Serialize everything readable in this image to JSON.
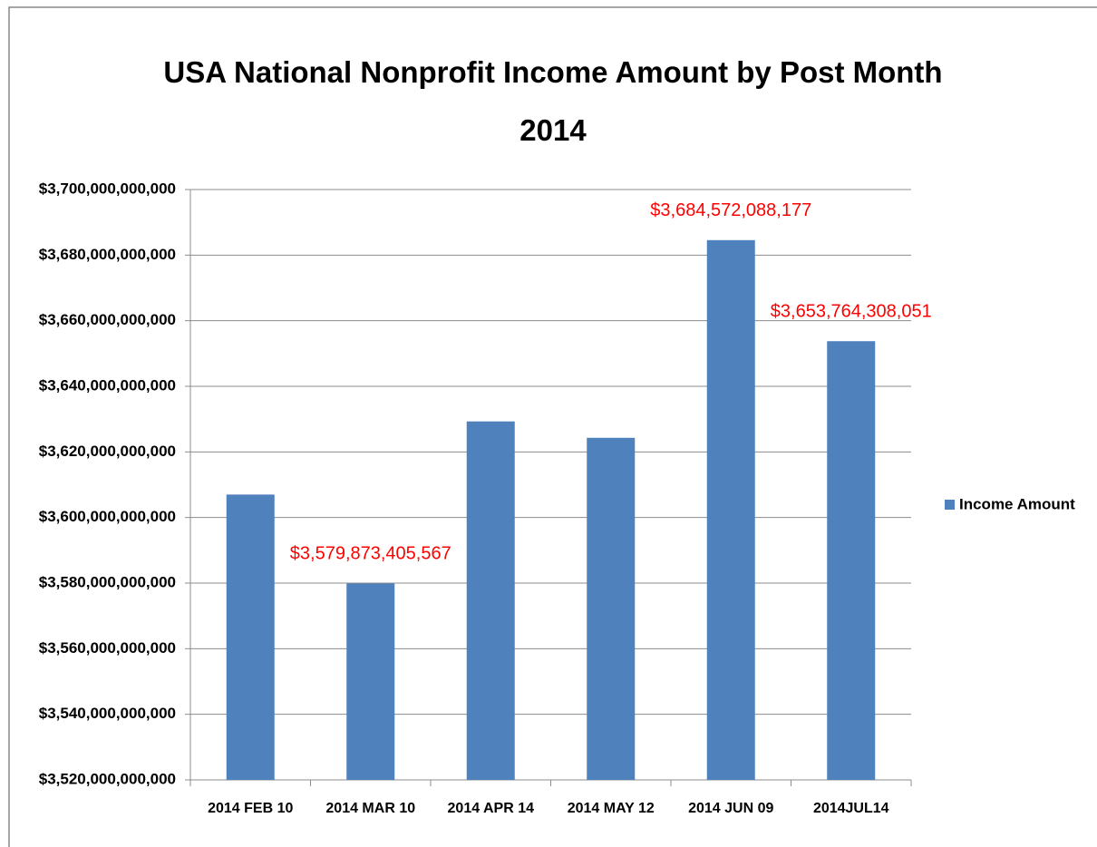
{
  "chart_data": {
    "type": "bar",
    "title": "USA National Nonprofit Income Amount by Post Month 2014",
    "categories": [
      "2014 FEB 10",
      "2014 MAR 10",
      "2014 APR 14",
      "2014 MAY 12",
      "2014 JUN 09",
      "2014JUL14"
    ],
    "series": [
      {
        "name": "Income Amount",
        "color": "#4f81bd",
        "values": [
          3607000000000,
          3579873405567,
          3629300000000,
          3624300000000,
          3684572088177,
          3653764308051
        ],
        "value_labels": [
          null,
          "$3,579,873,405,567",
          null,
          null,
          "$3,684,572,088,177",
          "$3,653,764,308,051"
        ]
      }
    ],
    "ylim": [
      3520000000000,
      3700000000000
    ],
    "yticks": [
      {
        "value": 3520000000000,
        "label": "$3,520,000,000,000"
      },
      {
        "value": 3540000000000,
        "label": "$3,540,000,000,000"
      },
      {
        "value": 3560000000000,
        "label": "$3,560,000,000,000"
      },
      {
        "value": 3580000000000,
        "label": "$3,580,000,000,000"
      },
      {
        "value": 3600000000000,
        "label": "$3,600,000,000,000"
      },
      {
        "value": 3620000000000,
        "label": "$3,620,000,000,000"
      },
      {
        "value": 3640000000000,
        "label": "$3,640,000,000,000"
      },
      {
        "value": 3660000000000,
        "label": "$3,660,000,000,000"
      },
      {
        "value": 3680000000000,
        "label": "$3,680,000,000,000"
      },
      {
        "value": 3700000000000,
        "label": "$3,700,000,000,000"
      }
    ],
    "grid": true,
    "legend": "right"
  }
}
